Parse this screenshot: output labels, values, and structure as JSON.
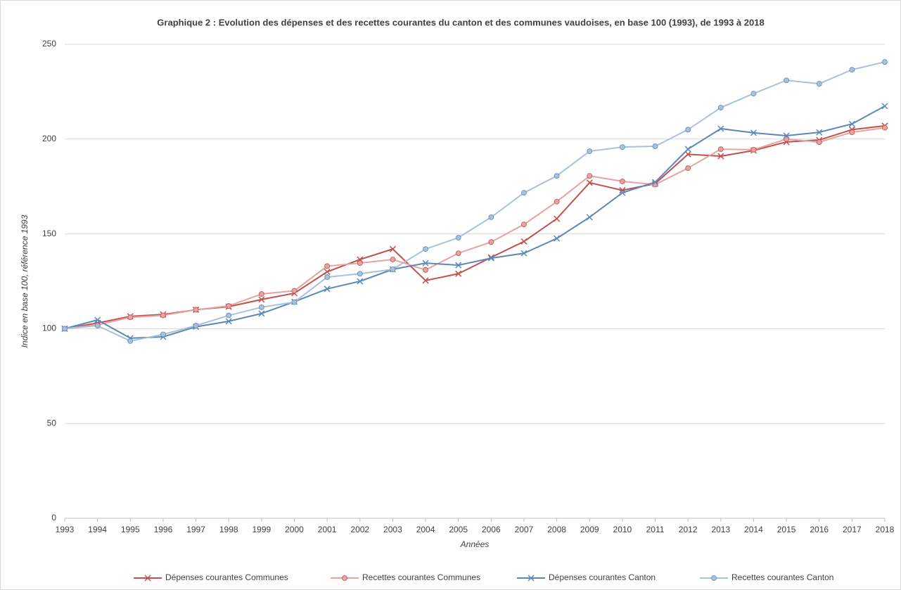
{
  "chart_data": {
    "type": "line",
    "title": "Graphique 2 : Evolution des dépenses et des recettes courantes du canton et des communes  vaudoises, en base 100 (1993), de 1993 à 2018",
    "x_label": "Années",
    "y_label": "Indice en base 100, référence 1993",
    "categories": [
      "1993",
      "1994",
      "1995",
      "1996",
      "1997",
      "1998",
      "1999",
      "2000",
      "2001",
      "2002",
      "2003",
      "2004",
      "2005",
      "2006",
      "2007",
      "2008",
      "2009",
      "2010",
      "2011",
      "2012",
      "2013",
      "2014",
      "2015",
      "2016",
      "2017",
      "2018"
    ],
    "ylim": [
      0,
      250
    ],
    "yticks": [
      0,
      50,
      100,
      150,
      200,
      250
    ],
    "grid": true,
    "legend": "bottom",
    "series": [
      {
        "name": "Dépenses courantes Communes",
        "color": "#c0504d",
        "marker": "x",
        "values": [
          100,
          103,
          106.5,
          107.5,
          110,
          111.6,
          115.4,
          118.7,
          130,
          136.5,
          142,
          125.4,
          129,
          137.6,
          146,
          158,
          177,
          173,
          176.5,
          192,
          191,
          194,
          198.5,
          199.5,
          205,
          207
        ]
      },
      {
        "name": "Recettes courantes Communes",
        "color": "#e6a3a0",
        "marker": "circle",
        "values": [
          100,
          102,
          106,
          107,
          110,
          112,
          118.3,
          120,
          133,
          134.6,
          136.5,
          131,
          139.8,
          145.7,
          155,
          167,
          180.6,
          177.7,
          176,
          184.7,
          194.7,
          194.4,
          200,
          198.4,
          203.6,
          206
        ]
      },
      {
        "name": "Dépenses courantes Canton",
        "color": "#5b87b9",
        "marker": "x",
        "values": [
          100,
          104.6,
          95,
          95.7,
          101,
          103.9,
          108,
          114.2,
          121,
          125,
          131.3,
          134.6,
          133.5,
          137.2,
          139.8,
          147.6,
          158.8,
          171.7,
          177.3,
          194.7,
          205.5,
          203.3,
          201.8,
          203.6,
          208,
          217.4
        ]
      },
      {
        "name": "Recettes courantes Canton",
        "color": "#a9c1da",
        "marker": "circle",
        "values": [
          100,
          101.6,
          93.5,
          97,
          101.6,
          107,
          111.3,
          114,
          127.2,
          129,
          131.3,
          142,
          148,
          158.8,
          171.7,
          180.6,
          193.6,
          195.8,
          196.2,
          205,
          216.6,
          224,
          231,
          229.2,
          236.6,
          240.7
        ]
      }
    ]
  }
}
